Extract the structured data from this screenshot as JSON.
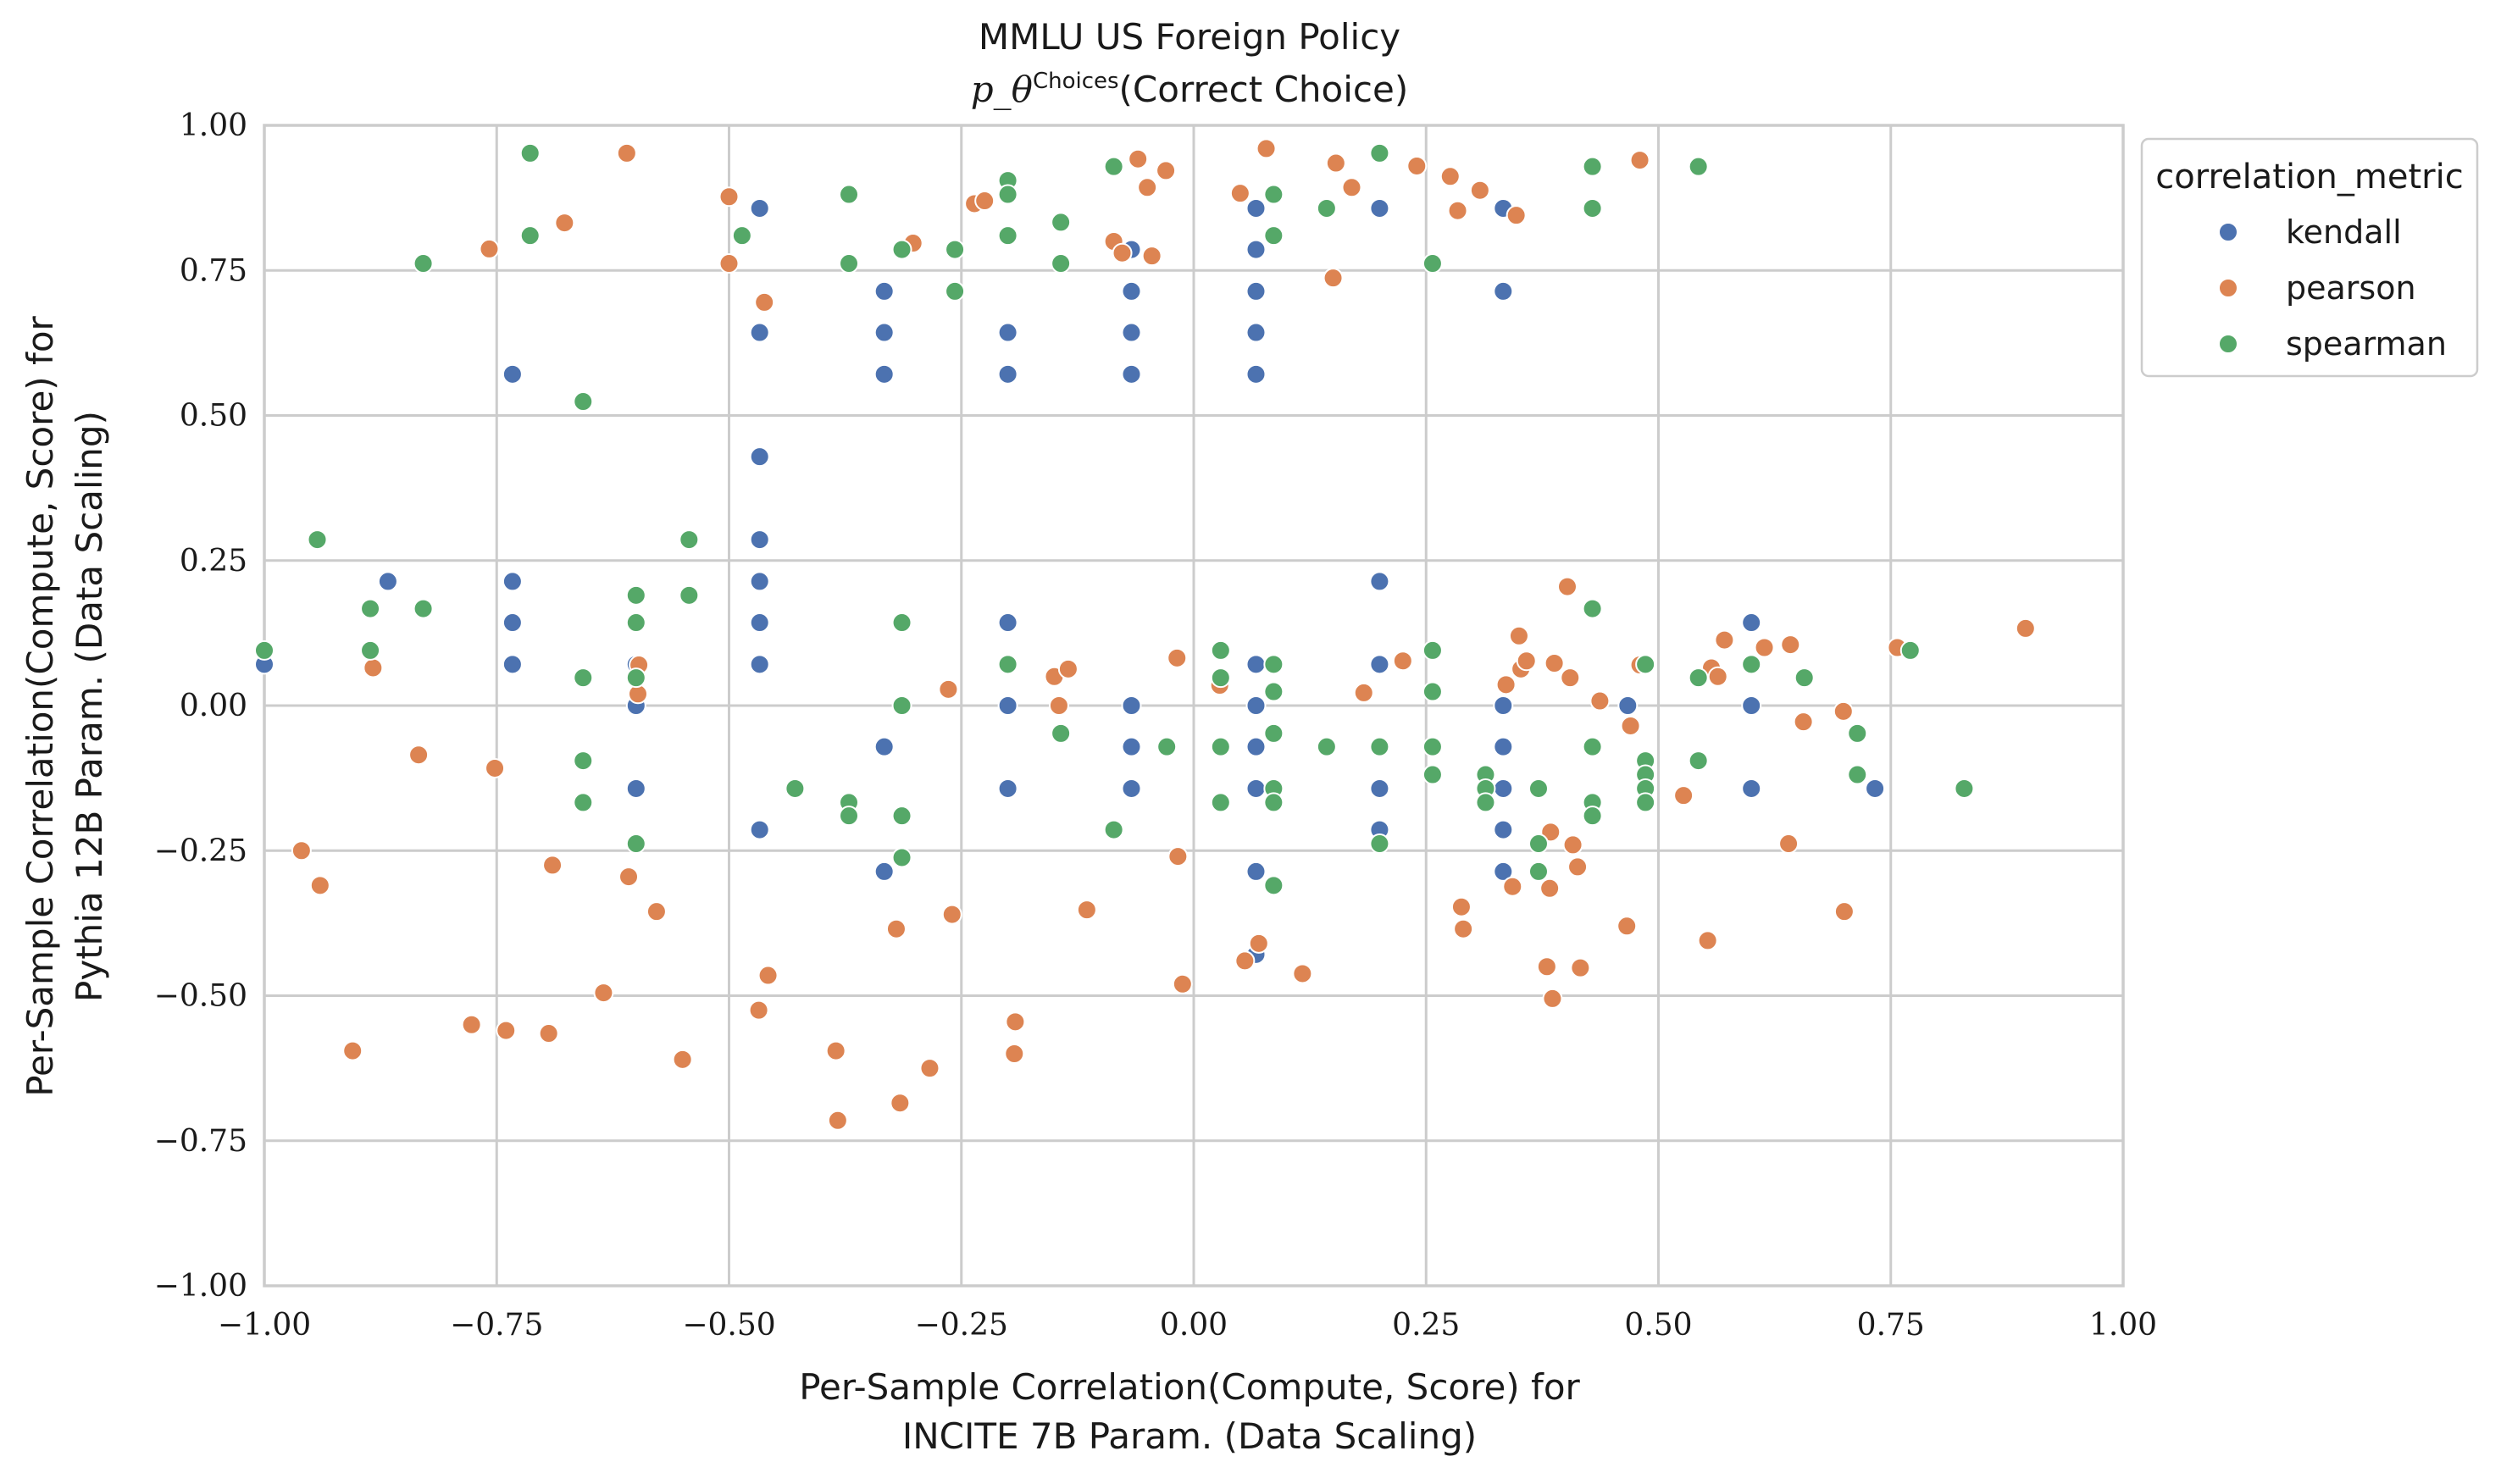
{
  "chart_data": {
    "type": "scatter",
    "title": "MMLU US Foreign Policy",
    "subtitle_math": "p_θ",
    "subtitle_sup": "Choices",
    "subtitle_text": "(Correct Choice)",
    "xlabel_line1": "Per-Sample Correlation(Compute, Score) for",
    "xlabel_line2": "INCITE 7B Param. (Data Scaling)",
    "ylabel_line1": "Per-Sample Correlation(Compute, Score) for",
    "ylabel_line2": "Pythia 12B Param. (Data Scaling)",
    "xlim": [
      -1.0,
      1.0
    ],
    "ylim": [
      -1.0,
      1.0
    ],
    "xticks": [
      -1.0,
      -0.75,
      -0.5,
      -0.25,
      0.0,
      0.25,
      0.5,
      0.75,
      1.0
    ],
    "yticks": [
      -1.0,
      -0.75,
      -0.5,
      -0.25,
      0.0,
      0.25,
      0.5,
      0.75,
      1.0
    ],
    "xtick_labels": [
      "−1.00",
      "−0.75",
      "−0.50",
      "−0.25",
      "0.00",
      "0.25",
      "0.50",
      "0.75",
      "1.00"
    ],
    "ytick_labels": [
      "−1.00",
      "−0.75",
      "−0.50",
      "−0.25",
      "0.00",
      "0.25",
      "0.50",
      "0.75",
      "1.00"
    ],
    "grid": true,
    "legend": {
      "title": "correlation_metric",
      "placement": "outside-top-right"
    },
    "series": [
      {
        "name": "kendall",
        "color": "#4c72b0",
        "points": [
          [
            -1.0,
            0.071
          ],
          [
            -0.867,
            0.214
          ],
          [
            -0.733,
            0.571
          ],
          [
            -0.733,
            0.214
          ],
          [
            -0.733,
            0.143
          ],
          [
            -0.733,
            0.071
          ],
          [
            -0.6,
            0.071
          ],
          [
            -0.6,
            0.0
          ],
          [
            -0.6,
            -0.143
          ],
          [
            -0.467,
            0.857
          ],
          [
            -0.467,
            0.643
          ],
          [
            -0.467,
            0.429
          ],
          [
            -0.467,
            0.286
          ],
          [
            -0.467,
            0.214
          ],
          [
            -0.467,
            0.143
          ],
          [
            -0.467,
            0.071
          ],
          [
            -0.467,
            -0.214
          ],
          [
            -0.333,
            0.714
          ],
          [
            -0.333,
            0.643
          ],
          [
            -0.333,
            0.571
          ],
          [
            -0.333,
            -0.071
          ],
          [
            -0.333,
            -0.286
          ],
          [
            -0.2,
            0.643
          ],
          [
            -0.2,
            0.571
          ],
          [
            -0.2,
            0.143
          ],
          [
            -0.2,
            0.0
          ],
          [
            -0.2,
            -0.143
          ],
          [
            -0.067,
            0.786
          ],
          [
            -0.067,
            0.714
          ],
          [
            -0.067,
            0.643
          ],
          [
            -0.067,
            0.571
          ],
          [
            -0.067,
            0.0
          ],
          [
            -0.067,
            -0.071
          ],
          [
            -0.067,
            -0.143
          ],
          [
            0.067,
            0.857
          ],
          [
            0.067,
            0.786
          ],
          [
            0.067,
            0.714
          ],
          [
            0.067,
            0.643
          ],
          [
            0.067,
            0.571
          ],
          [
            0.067,
            0.071
          ],
          [
            0.067,
            0.0
          ],
          [
            0.067,
            -0.071
          ],
          [
            0.067,
            -0.143
          ],
          [
            0.067,
            -0.286
          ],
          [
            0.067,
            -0.429
          ],
          [
            0.2,
            0.857
          ],
          [
            0.2,
            0.214
          ],
          [
            0.2,
            0.071
          ],
          [
            0.2,
            -0.143
          ],
          [
            0.2,
            -0.214
          ],
          [
            0.333,
            0.857
          ],
          [
            0.333,
            0.714
          ],
          [
            0.333,
            0.0
          ],
          [
            0.333,
            -0.071
          ],
          [
            0.333,
            -0.143
          ],
          [
            0.333,
            -0.214
          ],
          [
            0.333,
            -0.286
          ],
          [
            0.467,
            0.0
          ],
          [
            0.6,
            0.143
          ],
          [
            0.6,
            0.0
          ],
          [
            0.6,
            -0.143
          ],
          [
            0.733,
            -0.143
          ]
        ]
      },
      {
        "name": "pearson",
        "color": "#dd8452",
        "points": [
          [
            -0.96,
            -0.25
          ],
          [
            -0.94,
            -0.31
          ],
          [
            -0.905,
            -0.595
          ],
          [
            -0.883,
            0.065
          ],
          [
            -0.834,
            -0.085
          ],
          [
            -0.758,
            0.787
          ],
          [
            -0.752,
            -0.108
          ],
          [
            -0.777,
            -0.55
          ],
          [
            -0.74,
            -0.56
          ],
          [
            -0.694,
            -0.565
          ],
          [
            -0.69,
            -0.275
          ],
          [
            -0.677,
            0.832
          ],
          [
            -0.635,
            -0.495
          ],
          [
            -0.61,
            0.952
          ],
          [
            -0.608,
            -0.295
          ],
          [
            -0.597,
            0.07
          ],
          [
            -0.598,
            0.02
          ],
          [
            -0.578,
            -0.355
          ],
          [
            -0.55,
            -0.61
          ],
          [
            -0.5,
            0.877
          ],
          [
            -0.5,
            0.762
          ],
          [
            -0.462,
            0.695
          ],
          [
            -0.468,
            -0.525
          ],
          [
            -0.458,
            -0.465
          ],
          [
            -0.385,
            -0.595
          ],
          [
            -0.383,
            -0.715
          ],
          [
            -0.32,
            -0.385
          ],
          [
            -0.316,
            -0.685
          ],
          [
            -0.302,
            0.797
          ],
          [
            -0.284,
            -0.625
          ],
          [
            -0.264,
            0.028
          ],
          [
            -0.26,
            -0.36
          ],
          [
            -0.236,
            0.865
          ],
          [
            -0.225,
            0.87
          ],
          [
            -0.192,
            -0.545
          ],
          [
            -0.193,
            -0.6
          ],
          [
            -0.15,
            0.05
          ],
          [
            -0.145,
            0.0
          ],
          [
            -0.135,
            0.063
          ],
          [
            -0.115,
            -0.352
          ],
          [
            -0.086,
            0.8
          ],
          [
            -0.077,
            0.78
          ],
          [
            -0.06,
            0.942
          ],
          [
            -0.05,
            0.893
          ],
          [
            -0.045,
            0.775
          ],
          [
            -0.03,
            0.922
          ],
          [
            -0.018,
            0.082
          ],
          [
            -0.017,
            -0.26
          ],
          [
            -0.012,
            -0.48
          ],
          [
            0.028,
            0.035
          ],
          [
            0.05,
            0.883
          ],
          [
            0.055,
            -0.44
          ],
          [
            0.07,
            -0.41
          ],
          [
            0.078,
            0.96
          ],
          [
            0.117,
            -0.462
          ],
          [
            0.15,
            0.737
          ],
          [
            0.153,
            0.935
          ],
          [
            0.17,
            0.893
          ],
          [
            0.183,
            0.022
          ],
          [
            0.225,
            0.077
          ],
          [
            0.24,
            0.93
          ],
          [
            0.276,
            0.912
          ],
          [
            0.284,
            0.853
          ],
          [
            0.288,
            -0.347
          ],
          [
            0.29,
            -0.385
          ],
          [
            0.308,
            0.888
          ],
          [
            0.336,
            0.036
          ],
          [
            0.343,
            -0.312
          ],
          [
            0.347,
            0.845
          ],
          [
            0.35,
            0.12
          ],
          [
            0.352,
            0.063
          ],
          [
            0.358,
            0.077
          ],
          [
            0.38,
            -0.45
          ],
          [
            0.383,
            -0.315
          ],
          [
            0.384,
            -0.218
          ],
          [
            0.386,
            -0.505
          ],
          [
            0.388,
            0.073
          ],
          [
            0.402,
            0.205
          ],
          [
            0.405,
            0.048
          ],
          [
            0.408,
            -0.24
          ],
          [
            0.413,
            -0.278
          ],
          [
            0.416,
            -0.452
          ],
          [
            0.437,
            0.008
          ],
          [
            0.466,
            -0.38
          ],
          [
            0.47,
            -0.035
          ],
          [
            0.48,
            0.94
          ],
          [
            0.48,
            0.07
          ],
          [
            0.527,
            -0.155
          ],
          [
            0.553,
            -0.405
          ],
          [
            0.557,
            0.065
          ],
          [
            0.564,
            0.05
          ],
          [
            0.571,
            0.113
          ],
          [
            0.614,
            0.1
          ],
          [
            0.64,
            -0.238
          ],
          [
            0.642,
            0.105
          ],
          [
            0.656,
            -0.028
          ],
          [
            0.699,
            -0.01
          ],
          [
            0.7,
            -0.355
          ],
          [
            0.757,
            0.1
          ],
          [
            0.895,
            0.133
          ]
        ]
      },
      {
        "name": "spearman",
        "color": "#55a868",
        "points": [
          [
            -1.0,
            0.095
          ],
          [
            -0.943,
            0.286
          ],
          [
            -0.886,
            0.167
          ],
          [
            -0.886,
            0.095
          ],
          [
            -0.829,
            0.762
          ],
          [
            -0.829,
            0.167
          ],
          [
            -0.714,
            0.952
          ],
          [
            -0.714,
            0.81
          ],
          [
            -0.657,
            0.524
          ],
          [
            -0.657,
            0.048
          ],
          [
            -0.657,
            -0.095
          ],
          [
            -0.657,
            -0.167
          ],
          [
            -0.6,
            0.19
          ],
          [
            -0.6,
            0.143
          ],
          [
            -0.6,
            0.048
          ],
          [
            -0.6,
            -0.238
          ],
          [
            -0.543,
            0.286
          ],
          [
            -0.543,
            0.19
          ],
          [
            -0.486,
            0.81
          ],
          [
            -0.429,
            -0.143
          ],
          [
            -0.371,
            0.881
          ],
          [
            -0.371,
            0.762
          ],
          [
            -0.371,
            -0.167
          ],
          [
            -0.371,
            -0.19
          ],
          [
            -0.314,
            0.786
          ],
          [
            -0.314,
            0.143
          ],
          [
            -0.314,
            0.0
          ],
          [
            -0.314,
            -0.19
          ],
          [
            -0.314,
            -0.262
          ],
          [
            -0.257,
            0.786
          ],
          [
            -0.257,
            0.714
          ],
          [
            -0.2,
            0.905
          ],
          [
            -0.2,
            0.881
          ],
          [
            -0.2,
            0.81
          ],
          [
            -0.2,
            0.071
          ],
          [
            -0.143,
            0.833
          ],
          [
            -0.143,
            0.762
          ],
          [
            -0.143,
            -0.048
          ],
          [
            -0.086,
            0.929
          ],
          [
            -0.086,
            -0.214
          ],
          [
            -0.029,
            -0.071
          ],
          [
            0.029,
            0.095
          ],
          [
            0.029,
            0.048
          ],
          [
            0.029,
            -0.071
          ],
          [
            0.029,
            -0.167
          ],
          [
            0.086,
            0.881
          ],
          [
            0.086,
            0.81
          ],
          [
            0.086,
            0.071
          ],
          [
            0.086,
            0.024
          ],
          [
            0.086,
            -0.048
          ],
          [
            0.086,
            -0.143
          ],
          [
            0.086,
            -0.167
          ],
          [
            0.086,
            -0.31
          ],
          [
            0.143,
            0.857
          ],
          [
            0.143,
            -0.071
          ],
          [
            0.2,
            0.952
          ],
          [
            0.2,
            -0.071
          ],
          [
            0.2,
            -0.238
          ],
          [
            0.257,
            0.762
          ],
          [
            0.257,
            0.095
          ],
          [
            0.257,
            0.024
          ],
          [
            0.257,
            -0.071
          ],
          [
            0.257,
            -0.119
          ],
          [
            0.314,
            -0.119
          ],
          [
            0.314,
            -0.143
          ],
          [
            0.314,
            -0.167
          ],
          [
            0.371,
            -0.143
          ],
          [
            0.371,
            -0.238
          ],
          [
            0.371,
            -0.286
          ],
          [
            0.429,
            0.929
          ],
          [
            0.429,
            0.857
          ],
          [
            0.429,
            0.167
          ],
          [
            0.429,
            -0.071
          ],
          [
            0.429,
            -0.167
          ],
          [
            0.429,
            -0.19
          ],
          [
            0.486,
            0.071
          ],
          [
            0.486,
            -0.095
          ],
          [
            0.486,
            -0.119
          ],
          [
            0.486,
            -0.143
          ],
          [
            0.486,
            -0.167
          ],
          [
            0.543,
            0.929
          ],
          [
            0.543,
            0.048
          ],
          [
            0.543,
            -0.095
          ],
          [
            0.6,
            0.071
          ],
          [
            0.657,
            0.048
          ],
          [
            0.714,
            -0.048
          ],
          [
            0.714,
            -0.119
          ],
          [
            0.771,
            0.095
          ],
          [
            0.829,
            -0.143
          ]
        ]
      }
    ]
  }
}
